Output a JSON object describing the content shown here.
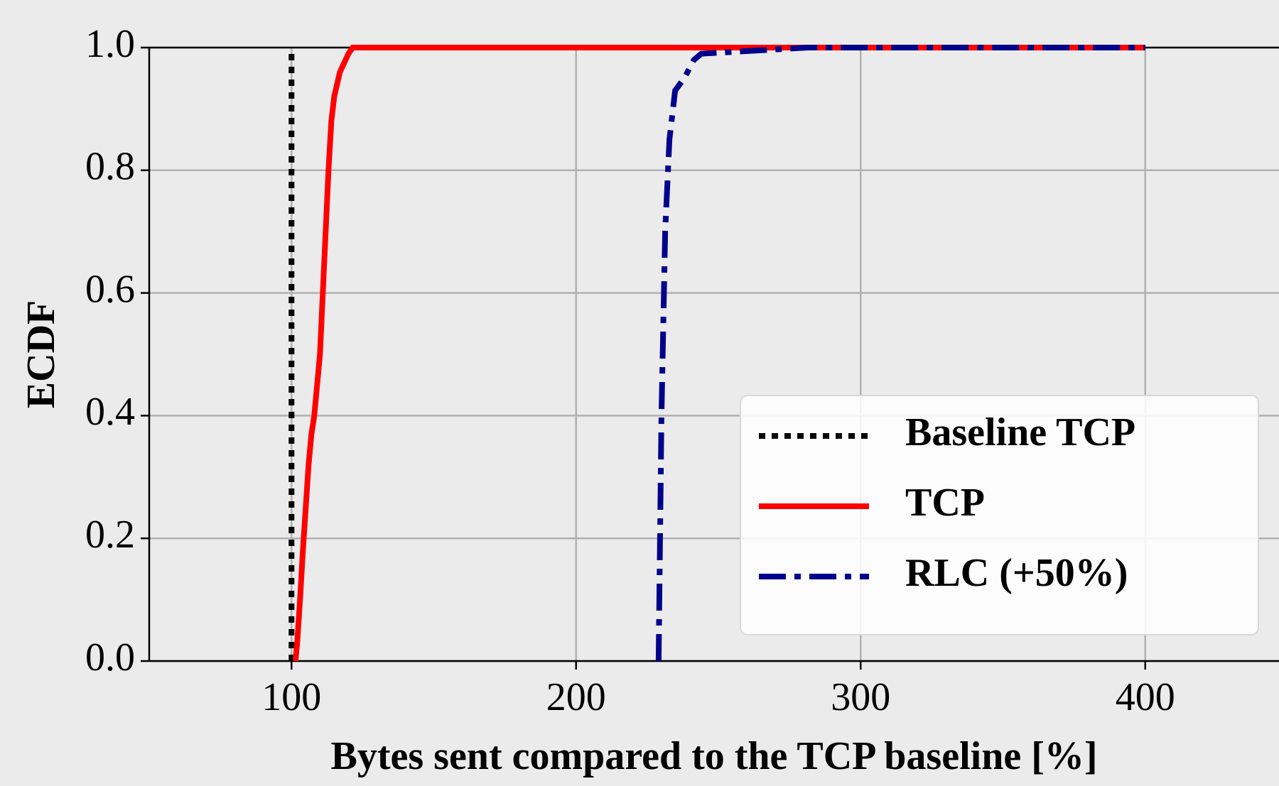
{
  "chart_data": {
    "type": "line",
    "xlabel": "Bytes sent compared to the TCP baseline [%]",
    "ylabel": "ECDF",
    "xlim": [
      50,
      447
    ],
    "xticks": [
      100,
      200,
      300,
      400
    ],
    "ylim": [
      0,
      1
    ],
    "yticks": [
      {
        "value": 0,
        "label": "0.0"
      },
      0.2,
      0.4,
      0.6,
      0.8,
      {
        "value": 1,
        "label": "1.0"
      }
    ],
    "grid": true,
    "legend": "lower right",
    "series": [
      {
        "name": "Baseline TCP",
        "color": "#000000",
        "linestyle": "dotted",
        "x": [
          100,
          100
        ],
        "values": [
          0,
          1
        ]
      },
      {
        "name": "TCP",
        "color": "#ff0000",
        "linestyle": "solid",
        "x": [
          101.4,
          102,
          103,
          104,
          105,
          106,
          107,
          108,
          110,
          111,
          112,
          113,
          114,
          115,
          117,
          119,
          120,
          121.5,
          130,
          400
        ],
        "values": [
          0,
          0.03,
          0.1,
          0.18,
          0.25,
          0.32,
          0.37,
          0.4,
          0.5,
          0.6,
          0.7,
          0.8,
          0.88,
          0.92,
          0.96,
          0.98,
          0.99,
          1,
          1,
          1
        ]
      },
      {
        "name": "RLC (+50%)",
        "color": "#00008b",
        "linestyle": "dashdot",
        "x": [
          229,
          230,
          231.3,
          232.8,
          234.8,
          238,
          241.4,
          244,
          281.5,
          400
        ],
        "values": [
          0,
          0.4,
          0.7,
          0.85,
          0.93,
          0.95,
          0.98,
          0.99,
          1,
          1
        ]
      }
    ]
  }
}
